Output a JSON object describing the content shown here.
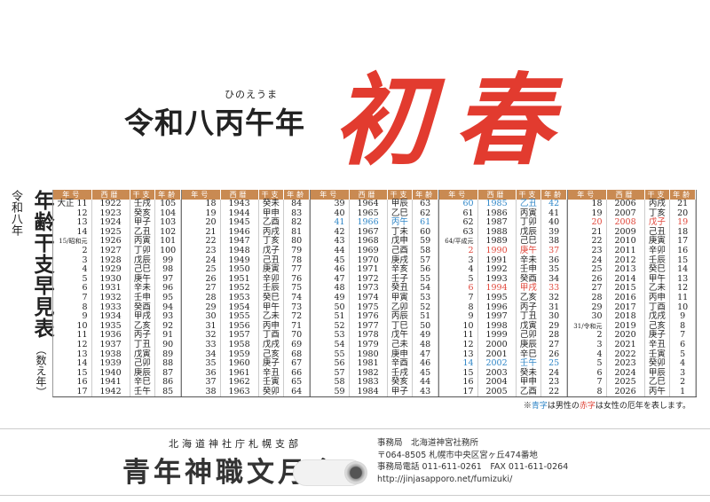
{
  "header": {
    "title": "令和八丙午年",
    "ruby": "ひのえうま",
    "hatsuharu": "初春"
  },
  "side": {
    "reiwa": "令和八年",
    "title": "年齢干支早見表",
    "kazoe": "（数え年）"
  },
  "table": {
    "headers": [
      "年号",
      "西暦",
      "干支",
      "年齢"
    ],
    "colors": {
      "blue": "#2f86c7",
      "red": "#e0463a",
      "header": "#c98a52"
    },
    "groups": [
      [
        [
          "大正 11",
          "1922",
          "壬戌",
          "105",
          ""
        ],
        [
          "12",
          "1923",
          "癸亥",
          "104",
          ""
        ],
        [
          "13",
          "1924",
          "甲子",
          "103",
          ""
        ],
        [
          "14",
          "1925",
          "乙丑",
          "102",
          ""
        ],
        [
          "15/昭和元",
          "1926",
          "丙寅",
          "101",
          ""
        ],
        [
          "2",
          "1927",
          "丁卯",
          "100",
          ""
        ],
        [
          "3",
          "1928",
          "戊辰",
          "99",
          ""
        ],
        [
          "4",
          "1929",
          "己巳",
          "98",
          ""
        ],
        [
          "5",
          "1930",
          "庚午",
          "97",
          ""
        ],
        [
          "6",
          "1931",
          "辛未",
          "96",
          ""
        ],
        [
          "7",
          "1932",
          "壬申",
          "95",
          ""
        ],
        [
          "8",
          "1933",
          "癸酉",
          "94",
          ""
        ],
        [
          "9",
          "1934",
          "甲戌",
          "93",
          ""
        ],
        [
          "10",
          "1935",
          "乙亥",
          "92",
          ""
        ],
        [
          "11",
          "1936",
          "丙子",
          "91",
          ""
        ],
        [
          "12",
          "1937",
          "丁丑",
          "90",
          ""
        ],
        [
          "13",
          "1938",
          "戊寅",
          "89",
          ""
        ],
        [
          "14",
          "1939",
          "己卯",
          "88",
          ""
        ],
        [
          "15",
          "1940",
          "庚辰",
          "87",
          ""
        ],
        [
          "16",
          "1941",
          "辛巳",
          "86",
          ""
        ],
        [
          "17",
          "1942",
          "壬午",
          "85",
          ""
        ]
      ],
      [
        [
          "18",
          "1943",
          "癸未",
          "84",
          ""
        ],
        [
          "19",
          "1944",
          "甲申",
          "83",
          ""
        ],
        [
          "20",
          "1945",
          "乙酉",
          "82",
          ""
        ],
        [
          "21",
          "1946",
          "丙戌",
          "81",
          ""
        ],
        [
          "22",
          "1947",
          "丁亥",
          "80",
          ""
        ],
        [
          "23",
          "1948",
          "戊子",
          "79",
          ""
        ],
        [
          "24",
          "1949",
          "己丑",
          "78",
          ""
        ],
        [
          "25",
          "1950",
          "庚寅",
          "77",
          ""
        ],
        [
          "26",
          "1951",
          "辛卯",
          "76",
          ""
        ],
        [
          "27",
          "1952",
          "壬辰",
          "75",
          ""
        ],
        [
          "28",
          "1953",
          "癸巳",
          "74",
          ""
        ],
        [
          "29",
          "1954",
          "甲午",
          "73",
          ""
        ],
        [
          "30",
          "1955",
          "乙未",
          "72",
          ""
        ],
        [
          "31",
          "1956",
          "丙申",
          "71",
          ""
        ],
        [
          "32",
          "1957",
          "丁酉",
          "70",
          ""
        ],
        [
          "33",
          "1958",
          "戊戌",
          "69",
          ""
        ],
        [
          "34",
          "1959",
          "己亥",
          "68",
          ""
        ],
        [
          "35",
          "1960",
          "庚子",
          "67",
          ""
        ],
        [
          "36",
          "1961",
          "辛丑",
          "66",
          ""
        ],
        [
          "37",
          "1962",
          "壬寅",
          "65",
          ""
        ],
        [
          "38",
          "1963",
          "癸卯",
          "64",
          ""
        ]
      ],
      [
        [
          "39",
          "1964",
          "甲辰",
          "63",
          ""
        ],
        [
          "40",
          "1965",
          "乙巳",
          "62",
          ""
        ],
        [
          "41",
          "1966",
          "丙午",
          "61",
          "blue"
        ],
        [
          "42",
          "1967",
          "丁未",
          "60",
          ""
        ],
        [
          "43",
          "1968",
          "戊申",
          "59",
          ""
        ],
        [
          "44",
          "1969",
          "己酉",
          "58",
          ""
        ],
        [
          "45",
          "1970",
          "庚戌",
          "57",
          ""
        ],
        [
          "46",
          "1971",
          "辛亥",
          "56",
          ""
        ],
        [
          "47",
          "1972",
          "壬子",
          "55",
          ""
        ],
        [
          "48",
          "1973",
          "癸丑",
          "54",
          ""
        ],
        [
          "49",
          "1974",
          "甲寅",
          "53",
          ""
        ],
        [
          "50",
          "1975",
          "乙卯",
          "52",
          ""
        ],
        [
          "51",
          "1976",
          "丙辰",
          "51",
          ""
        ],
        [
          "52",
          "1977",
          "丁巳",
          "50",
          ""
        ],
        [
          "53",
          "1978",
          "戊午",
          "49",
          ""
        ],
        [
          "54",
          "1979",
          "己未",
          "48",
          ""
        ],
        [
          "55",
          "1980",
          "庚申",
          "47",
          ""
        ],
        [
          "56",
          "1981",
          "辛酉",
          "46",
          ""
        ],
        [
          "57",
          "1982",
          "壬戌",
          "45",
          ""
        ],
        [
          "58",
          "1983",
          "癸亥",
          "44",
          ""
        ],
        [
          "59",
          "1984",
          "甲子",
          "43",
          ""
        ]
      ],
      [
        [
          "60",
          "1985",
          "乙丑",
          "42",
          "blue"
        ],
        [
          "61",
          "1986",
          "丙寅",
          "41",
          ""
        ],
        [
          "62",
          "1987",
          "丁卯",
          "40",
          ""
        ],
        [
          "63",
          "1988",
          "戊辰",
          "39",
          ""
        ],
        [
          "64/平成元",
          "1989",
          "己巳",
          "38",
          ""
        ],
        [
          "2",
          "1990",
          "庚午",
          "37",
          "red"
        ],
        [
          "3",
          "1991",
          "辛未",
          "36",
          ""
        ],
        [
          "4",
          "1992",
          "壬申",
          "35",
          ""
        ],
        [
          "5",
          "1993",
          "癸酉",
          "34",
          ""
        ],
        [
          "6",
          "1994",
          "甲戌",
          "33",
          "red"
        ],
        [
          "7",
          "1995",
          "乙亥",
          "32",
          ""
        ],
        [
          "8",
          "1996",
          "丙子",
          "31",
          ""
        ],
        [
          "9",
          "1997",
          "丁丑",
          "30",
          ""
        ],
        [
          "10",
          "1998",
          "戊寅",
          "29",
          ""
        ],
        [
          "11",
          "1999",
          "己卯",
          "28",
          ""
        ],
        [
          "12",
          "2000",
          "庚辰",
          "27",
          ""
        ],
        [
          "13",
          "2001",
          "辛巳",
          "26",
          ""
        ],
        [
          "14",
          "2002",
          "壬午",
          "25",
          "blue"
        ],
        [
          "15",
          "2003",
          "癸未",
          "24",
          ""
        ],
        [
          "16",
          "2004",
          "甲申",
          "23",
          ""
        ],
        [
          "17",
          "2005",
          "乙酉",
          "22",
          ""
        ]
      ],
      [
        [
          "18",
          "2006",
          "丙戌",
          "21",
          ""
        ],
        [
          "19",
          "2007",
          "丁亥",
          "20",
          ""
        ],
        [
          "20",
          "2008",
          "戊子",
          "19",
          "red"
        ],
        [
          "21",
          "2009",
          "己丑",
          "18",
          ""
        ],
        [
          "22",
          "2010",
          "庚寅",
          "17",
          ""
        ],
        [
          "23",
          "2011",
          "辛卯",
          "16",
          ""
        ],
        [
          "24",
          "2012",
          "壬辰",
          "15",
          ""
        ],
        [
          "25",
          "2013",
          "癸巳",
          "14",
          ""
        ],
        [
          "26",
          "2014",
          "甲午",
          "13",
          ""
        ],
        [
          "27",
          "2015",
          "乙未",
          "12",
          ""
        ],
        [
          "28",
          "2016",
          "丙申",
          "11",
          ""
        ],
        [
          "29",
          "2017",
          "丁酉",
          "10",
          ""
        ],
        [
          "30",
          "2018",
          "戊戌",
          "9",
          ""
        ],
        [
          "31/令和元",
          "2019",
          "己亥",
          "8",
          ""
        ],
        [
          "2",
          "2020",
          "庚子",
          "7",
          ""
        ],
        [
          "3",
          "2021",
          "辛丑",
          "6",
          ""
        ],
        [
          "4",
          "2022",
          "壬寅",
          "5",
          ""
        ],
        [
          "5",
          "2023",
          "癸卯",
          "4",
          ""
        ],
        [
          "6",
          "2024",
          "甲辰",
          "3",
          ""
        ],
        [
          "7",
          "2025",
          "乙巳",
          "2",
          ""
        ],
        [
          "8",
          "2026",
          "丙午",
          "1",
          ""
        ]
      ]
    ]
  },
  "note": {
    "prefix": "※",
    "blue": "青字",
    "mid": "は男性の",
    "red": "赤字",
    "suffix": "は女性の厄年を表します。"
  },
  "footer": {
    "org_small": "北海道神社庁札幌支部",
    "org_big": "青年神職文月会",
    "contact": [
      "事務局　北海道神宮社務所",
      "〒064-8505 札幌市中央区宮ヶ丘474番地",
      "事務局電話 011-611-0261　FAX 011-611-0264",
      "http://jinjasapporo.net/fumizuki/"
    ]
  }
}
